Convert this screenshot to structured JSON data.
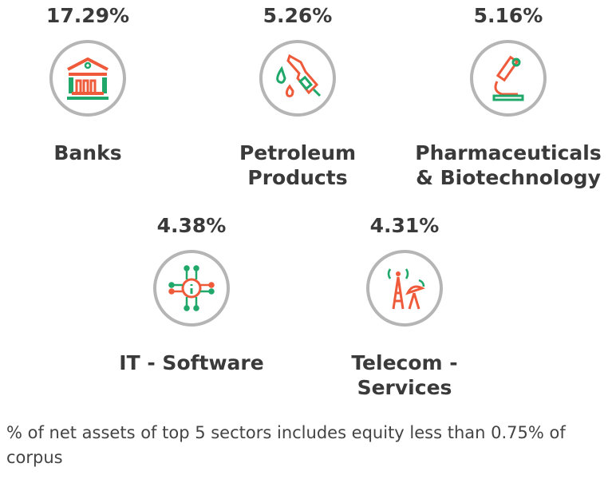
{
  "sectors": [
    {
      "percent": "17.29%",
      "label": "Banks",
      "icon": "bank-icon"
    },
    {
      "percent": "5.26%",
      "label": "Petroleum Products",
      "icon": "fuel-nozzle-icon"
    },
    {
      "percent": "5.16%",
      "label": "Pharmaceuticals & Biotechnology",
      "icon": "microscope-icon"
    },
    {
      "percent": "4.38%",
      "label": "IT - Software",
      "icon": "chip-icon"
    },
    {
      "percent": "4.31%",
      "label": "Telecom - Services",
      "icon": "tower-icon"
    }
  ],
  "note": "% of net assets of top 5 sectors includes equity less than 0.75% of corpus",
  "colors": {
    "orange": "#ee5a3a",
    "green": "#1fa86a",
    "ring": "#b5b5b5"
  }
}
